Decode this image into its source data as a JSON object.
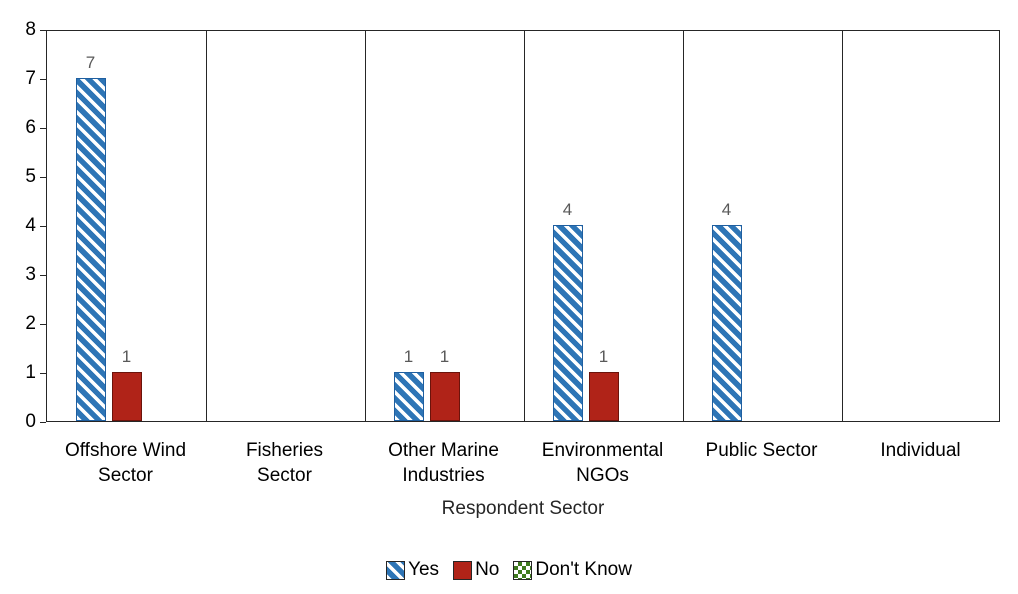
{
  "chart_data": {
    "type": "bar",
    "title": "",
    "xlabel": "Respondent Sector",
    "ylabel": "",
    "ylim": [
      0,
      8
    ],
    "y_tick_step": 1,
    "grid": "vertical category dividers with full plot border, no horizontal gridlines",
    "legend_position": "bottom-center",
    "data_labels": true,
    "categories": [
      "Offshore Wind Sector",
      "Fisheries Sector",
      "Other Marine Industries",
      "Environmental NGOs",
      "Public Sector",
      "Individual"
    ],
    "category_lines": [
      [
        "Offshore Wind",
        "Sector"
      ],
      [
        "Fisheries",
        "Sector"
      ],
      [
        "Other Marine",
        "Industries"
      ],
      [
        "Environmental",
        "NGOs"
      ],
      [
        "Public Sector"
      ],
      [
        "Individual"
      ]
    ],
    "series": [
      {
        "name": "Yes",
        "values": [
          7,
          0,
          1,
          4,
          4,
          0
        ],
        "fill": "pattern-diagonal-stripes",
        "color": "#2e75b6"
      },
      {
        "name": "No",
        "values": [
          1,
          0,
          1,
          1,
          0,
          0
        ],
        "fill": "solid",
        "color": "#b02318"
      },
      {
        "name": "Don't Know",
        "values": [
          0,
          0,
          0,
          0,
          0,
          0
        ],
        "fill": "pattern-checker",
        "color": "#3f7a1f"
      }
    ]
  },
  "colors": {
    "yes_blue": "#2e75b6",
    "no_red": "#b02318",
    "dont_know_green": "#3f7a1f",
    "axis_and_grid": "#262626",
    "value_label_gray": "#595959"
  }
}
